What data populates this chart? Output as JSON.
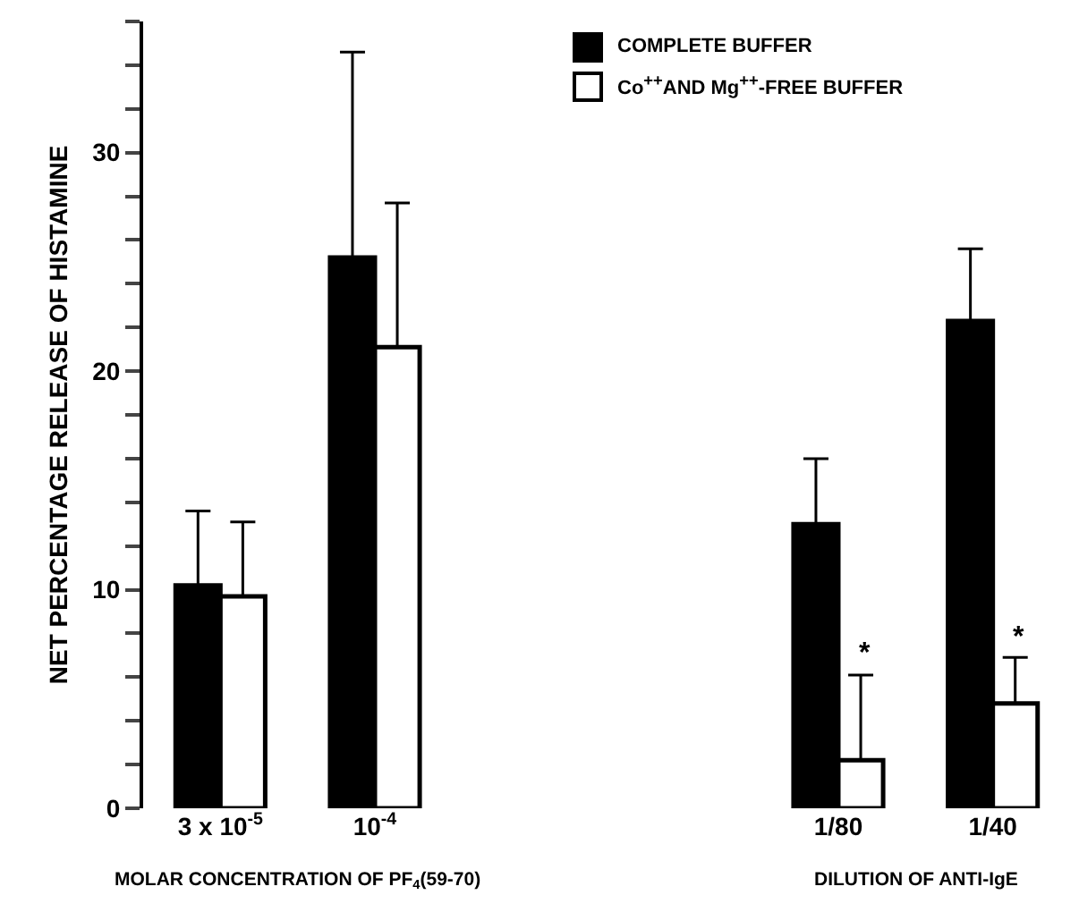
{
  "chart_data": {
    "type": "bar",
    "xlabel": "MOLAR CONCENTRATION OF PF$_{4}$(59-70)",
    "ylabel": "NET PERCENTAGE RELEASE OF HISTAMINE",
    "categories": [
      "3 x 10$^{-5}$",
      "10$^{-4}$",
      null,
      null,
      "1/80",
      "1/40"
    ],
    "series": [
      {
        "name": "COMPLETE BUFFER",
        "color": "#000000",
        "values": [
          10.2,
          25.2,
          null,
          null,
          13.0,
          22.3
        ],
        "errors": [
          [
            10.2,
            13.6
          ],
          [
            25.2,
            34.6
          ],
          null,
          null,
          [
            13.0,
            16.0
          ],
          [
            22.3,
            25.6
          ]
        ]
      },
      {
        "name": "Co$^{++}$AND Mg$^{++}$-FREE BUFFER",
        "color": "#ffffff",
        "values": [
          9.7,
          21.1,
          null,
          null,
          2.2,
          4.8
        ],
        "errors": [
          [
            9.7,
            13.1
          ],
          [
            21.1,
            27.7
          ],
          null,
          null,
          [
            2.2,
            6.1
          ],
          [
            4.8,
            6.9
          ]
        ]
      }
    ],
    "annotations": [
      "DILUTION OF ANTI-IgE",
      {
        "text": "*",
        "x": "1/80",
        "y": 6.1
      },
      {
        "text": "*",
        "x": "1/40",
        "y": 6.9
      }
    ],
    "ylim": [
      0,
      36
    ],
    "yticks": [
      0,
      {
        "value": 2,
        "label": null
      },
      {
        "value": 4,
        "label": null
      },
      {
        "value": 6,
        "label": null
      },
      {
        "value": 8,
        "label": null
      },
      10,
      {
        "value": 12,
        "label": null
      },
      {
        "value": 14,
        "label": null
      },
      {
        "value": 16,
        "label": null
      },
      {
        "value": 18,
        "label": null
      },
      20,
      {
        "value": 22,
        "label": null
      },
      {
        "value": 24,
        "label": null
      },
      {
        "value": 26,
        "label": null
      },
      {
        "value": 28,
        "label": null
      },
      30,
      {
        "value": 32,
        "label": null
      },
      {
        "value": 34,
        "label": null
      },
      {
        "value": 36,
        "label": null
      }
    ],
    "grid": false,
    "legend": "top right"
  }
}
